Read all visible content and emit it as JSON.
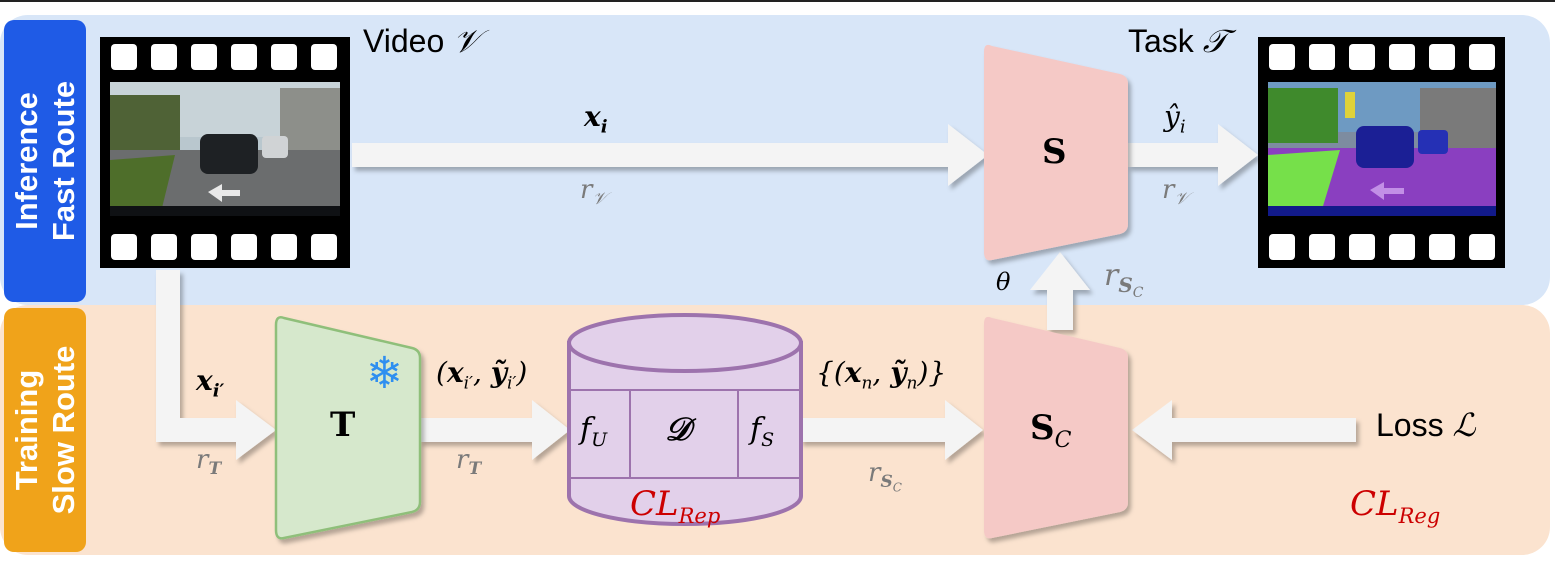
{
  "colors": {
    "inference_band": "#d8e6f8",
    "training_band": "#fbe3cf",
    "inference_tab": "#1f5be6",
    "training_tab": "#f0a31a",
    "student_box": "#f5c9c6",
    "teacher_box": "#d6e8cc",
    "teacher_border": "#8fbf7a",
    "buffer_fill": "#e2d0ea",
    "buffer_border": "#9d73ad",
    "arrow": "#f4f4f4",
    "accent_red": "#cc0000"
  },
  "routes": {
    "inference": {
      "line1": "Inference",
      "line2": "Fast Route"
    },
    "training": {
      "line1": "Training",
      "line2": "Slow Route"
    }
  },
  "header": {
    "video_label": "Video",
    "video_symbol": "𝒱",
    "task_label": "Task",
    "task_symbol": "𝒯"
  },
  "images": {
    "input_frame": "dashcam-street-frame",
    "output_frame": "segmentation-mask-frame"
  },
  "boxes": {
    "student": "S",
    "teacher": "T",
    "student_copy": "S",
    "student_copy_sub": "C",
    "teacher_icon": "❄"
  },
  "buffer": {
    "left": "f",
    "left_sub": "U",
    "middle": "𝒟",
    "right": "f",
    "right_sub": "S",
    "name": "CL",
    "name_sub": "Rep"
  },
  "edges": {
    "x_i": {
      "base": "x",
      "sub": "i"
    },
    "r_v_1": {
      "base": "r",
      "sub": "𝒱"
    },
    "y_hat": {
      "base": "ŷ",
      "sub": "i"
    },
    "r_v_2": {
      "base": "r",
      "sub": "𝒱"
    },
    "theta": "θ",
    "r_sc_top": {
      "base": "r",
      "sub": "S",
      "subsub": "C"
    },
    "x_i_prime": {
      "base": "x",
      "sub": "i′"
    },
    "r_t_1": {
      "base": "r",
      "sub": "T"
    },
    "pair": {
      "open": "(",
      "x": "x",
      "x_sub": "i′",
      "comma": ", ",
      "y": "ỹ",
      "y_sub": "i′",
      "close": ")"
    },
    "r_t_2": {
      "base": "r",
      "sub": "T"
    },
    "set": {
      "open": "{(",
      "x": "x",
      "x_sub": "n",
      "comma": ", ",
      "y": "ỹ",
      "y_sub": "n",
      "close": ")}"
    },
    "r_sc_bottom": {
      "base": "r",
      "sub": "S",
      "subsub": "C"
    },
    "loss_label": "Loss",
    "loss_symbol": "ℒ",
    "reg": {
      "base": "CL",
      "sub": "Reg"
    }
  }
}
